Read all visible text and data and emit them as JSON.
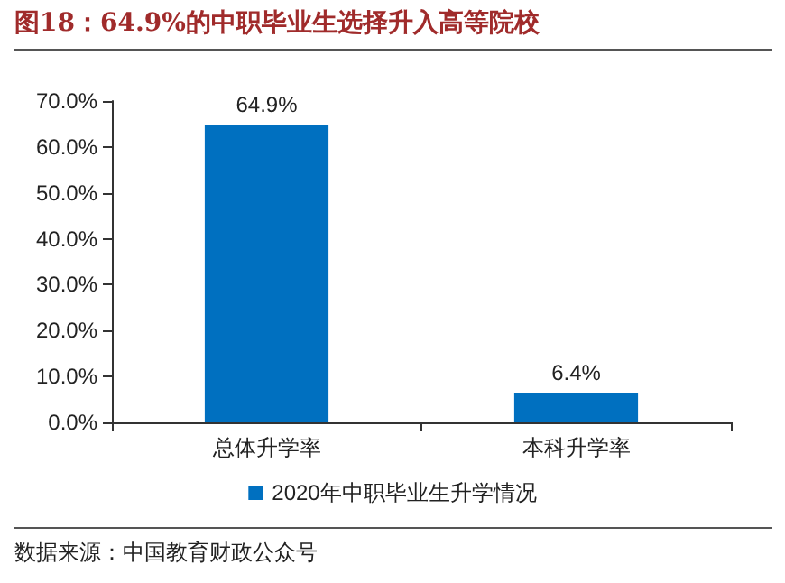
{
  "chart_data": {
    "type": "bar",
    "title": "图18：64.9%的中职毕业生选择升入高等院校",
    "categories": [
      "总体升学率",
      "本科升学率"
    ],
    "series": [
      {
        "name": "2020年中职毕业生升学情况",
        "color": "#0070c0",
        "values": [
          64.9,
          6.4
        ],
        "value_labels": [
          "64.9%",
          "6.4%"
        ]
      }
    ],
    "ylim": [
      0,
      70
    ],
    "yticks": [
      {
        "value": 0,
        "label": "0.0%"
      },
      {
        "value": 10,
        "label": "10.0%"
      },
      {
        "value": 20,
        "label": "20.0%"
      },
      {
        "value": 30,
        "label": "30.0%"
      },
      {
        "value": 40,
        "label": "40.0%"
      },
      {
        "value": 50,
        "label": "50.0%"
      },
      {
        "value": 60,
        "label": "60.0%"
      },
      {
        "value": 70,
        "label": "70.0%"
      }
    ],
    "grid": false,
    "legend": "bottom",
    "annotations": [
      "数据来源：中国教育财政公众号"
    ]
  }
}
